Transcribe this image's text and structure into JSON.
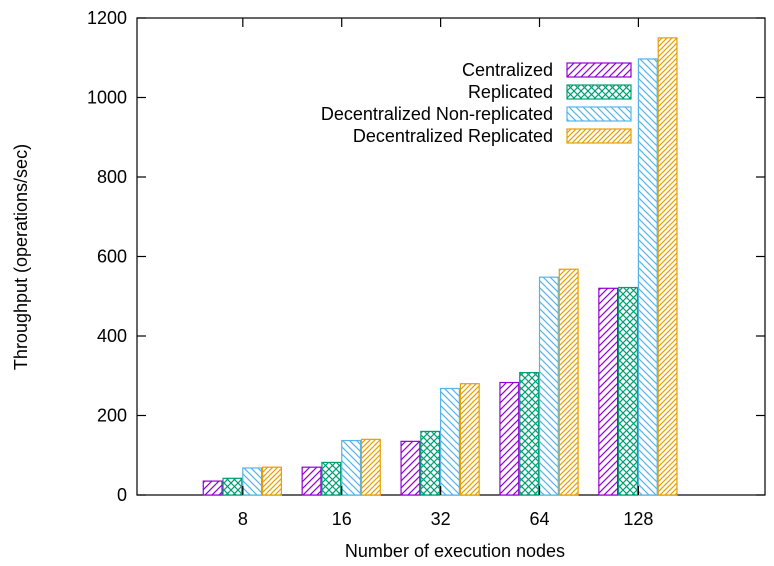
{
  "chart_data": {
    "type": "bar",
    "title": "",
    "xlabel": "Number of execution nodes",
    "ylabel": "Throughput (operations/sec)",
    "categories": [
      "8",
      "16",
      "32",
      "64",
      "128"
    ],
    "ylim": [
      0,
      1200
    ],
    "yticks": [
      0,
      200,
      400,
      600,
      800,
      1000,
      1200
    ],
    "grid": false,
    "legend": "top-right",
    "series": [
      {
        "name": "Centralized",
        "values": [
          35,
          70,
          135,
          283,
          520
        ],
        "color": "#9400d3",
        "pattern": "diagonal-right"
      },
      {
        "name": "Replicated",
        "values": [
          42,
          82,
          160,
          308,
          522
        ],
        "color": "#009e73",
        "pattern": "crosshatch"
      },
      {
        "name": "Decentralized Non-replicated",
        "values": [
          68,
          137,
          268,
          548,
          1097
        ],
        "color": "#56b4e9",
        "pattern": "diagonal-left"
      },
      {
        "name": "Decentralized Replicated",
        "values": [
          70,
          140,
          280,
          568,
          1150
        ],
        "color": "#e69f00",
        "pattern": "diagonal-right-dense"
      }
    ]
  }
}
